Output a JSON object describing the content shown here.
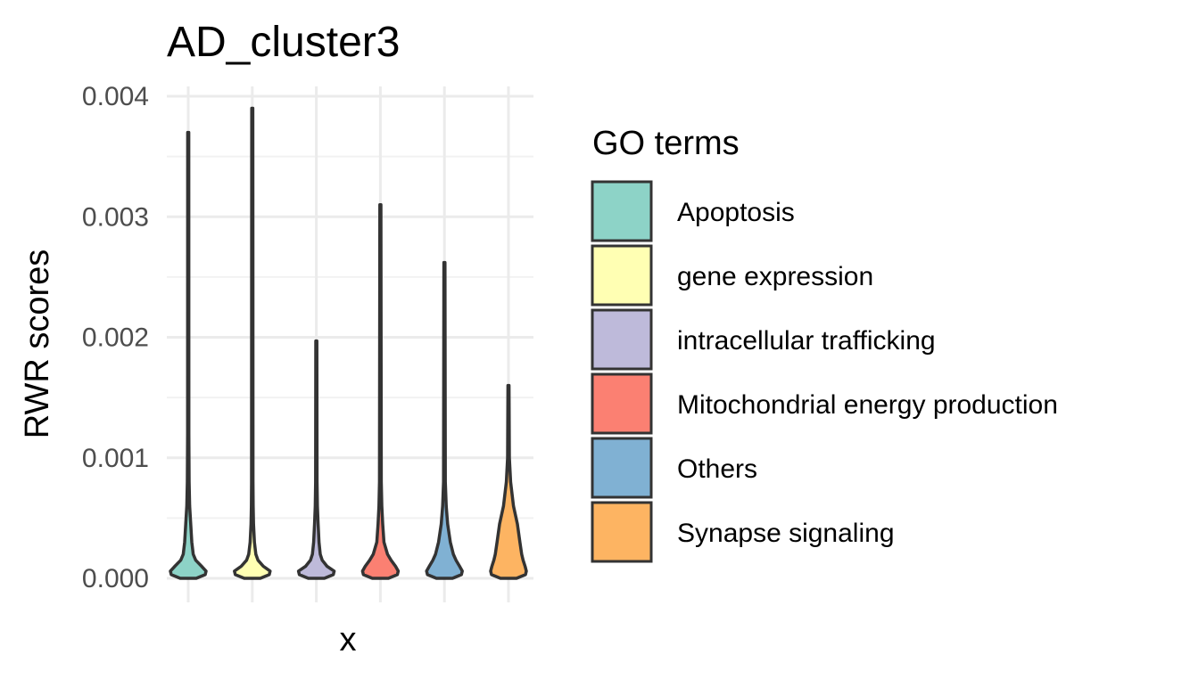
{
  "chart_data": {
    "type": "violin",
    "title": "AD_cluster3",
    "xlabel": "x",
    "ylabel": "RWR scores",
    "ylim": [
      0,
      0.004
    ],
    "yticks": [
      "0.000",
      "0.001",
      "0.002",
      "0.003",
      "0.004"
    ],
    "grid": true,
    "legend_title": "GO terms",
    "legend_position": "right",
    "series": [
      {
        "name": "Apoptosis",
        "color": "#8dd3c7",
        "max": 0.0037,
        "profile": [
          [
            0,
            0.45
          ],
          [
            3e-05,
            0.95
          ],
          [
            6e-05,
            1.0
          ],
          [
            0.0001,
            0.75
          ],
          [
            0.00015,
            0.42
          ],
          [
            0.0002,
            0.28
          ],
          [
            0.0003,
            0.2
          ],
          [
            0.00045,
            0.14
          ],
          [
            0.0006,
            0.08
          ],
          [
            0.0008,
            0.05
          ],
          [
            0.0012,
            0.035
          ],
          [
            0.0037,
            0.03
          ]
        ]
      },
      {
        "name": "gene expression",
        "color": "#ffffb3",
        "max": 0.0039,
        "profile": [
          [
            0,
            0.45
          ],
          [
            3e-05,
            0.95
          ],
          [
            6e-05,
            1.0
          ],
          [
            0.0001,
            0.62
          ],
          [
            0.00015,
            0.32
          ],
          [
            0.0002,
            0.2
          ],
          [
            0.0003,
            0.12
          ],
          [
            0.00045,
            0.07
          ],
          [
            0.0006,
            0.05
          ],
          [
            0.0008,
            0.04
          ],
          [
            0.0028,
            0.035
          ],
          [
            0.0039,
            0.03
          ]
        ]
      },
      {
        "name": "intracellular trafficking",
        "color": "#bebada",
        "max": 0.00197,
        "profile": [
          [
            0,
            0.45
          ],
          [
            3e-05,
            0.95
          ],
          [
            6e-05,
            1.0
          ],
          [
            0.0001,
            0.6
          ],
          [
            0.00015,
            0.33
          ],
          [
            0.0002,
            0.22
          ],
          [
            0.0003,
            0.15
          ],
          [
            0.00045,
            0.1
          ],
          [
            0.0006,
            0.06
          ],
          [
            0.0008,
            0.04
          ],
          [
            0.00197,
            0.03
          ]
        ]
      },
      {
        "name": "Mitochondrial energy production",
        "color": "#fb8072",
        "max": 0.0031,
        "profile": [
          [
            0,
            0.45
          ],
          [
            3e-05,
            0.95
          ],
          [
            6e-05,
            1.0
          ],
          [
            0.0001,
            0.85
          ],
          [
            0.00015,
            0.6
          ],
          [
            0.0002,
            0.4
          ],
          [
            0.0003,
            0.2
          ],
          [
            0.00045,
            0.13
          ],
          [
            0.0006,
            0.08
          ],
          [
            0.0008,
            0.05
          ],
          [
            0.0031,
            0.03
          ]
        ]
      },
      {
        "name": "Others",
        "color": "#80b1d3",
        "max": 0.00262,
        "profile": [
          [
            0,
            0.45
          ],
          [
            3e-05,
            0.95
          ],
          [
            6e-05,
            1.0
          ],
          [
            0.0001,
            0.85
          ],
          [
            0.00015,
            0.65
          ],
          [
            0.0002,
            0.5
          ],
          [
            0.0003,
            0.33
          ],
          [
            0.00045,
            0.18
          ],
          [
            0.0006,
            0.1
          ],
          [
            0.0008,
            0.05
          ],
          [
            0.00262,
            0.03
          ]
        ]
      },
      {
        "name": "Synapse signaling",
        "color": "#fdb462",
        "max": 0.0016,
        "profile": [
          [
            0,
            0.45
          ],
          [
            3e-05,
            0.95
          ],
          [
            6e-05,
            1.0
          ],
          [
            0.0001,
            0.93
          ],
          [
            0.00015,
            0.82
          ],
          [
            0.0002,
            0.74
          ],
          [
            0.0003,
            0.64
          ],
          [
            0.00045,
            0.5
          ],
          [
            0.0006,
            0.28
          ],
          [
            0.0008,
            0.12
          ],
          [
            0.001,
            0.05
          ],
          [
            0.0016,
            0.03
          ]
        ]
      }
    ]
  }
}
